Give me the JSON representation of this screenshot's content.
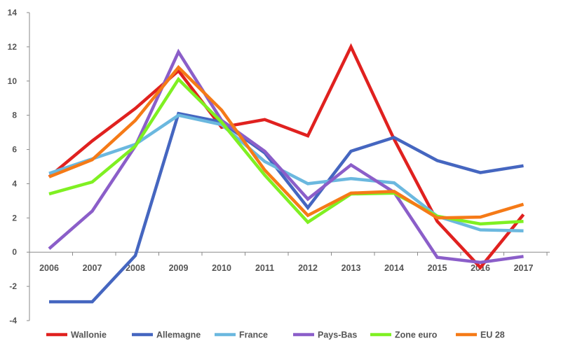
{
  "chart_data": {
    "type": "line",
    "title": "",
    "xlabel": "",
    "ylabel": "",
    "x": [
      "2006",
      "2007",
      "2008",
      "2009",
      "2010",
      "2011",
      "2012",
      "2013",
      "2014",
      "2015",
      "2016",
      "2017"
    ],
    "ylim": [
      -4,
      14
    ],
    "yticks": [
      -4,
      -2,
      0,
      2,
      4,
      6,
      8,
      10,
      12,
      14
    ],
    "grid": false,
    "legend_position": "bottom",
    "series": [
      {
        "name": "Wallonie",
        "color": "#e0211f",
        "values": [
          4.4,
          6.5,
          8.4,
          10.6,
          7.3,
          7.75,
          6.8,
          12.0,
          6.6,
          1.8,
          -0.9,
          2.2
        ]
      },
      {
        "name": "Allemagne",
        "color": "#4566c0",
        "values": [
          -2.9,
          -2.9,
          -0.2,
          8.1,
          7.6,
          5.8,
          2.6,
          5.9,
          6.7,
          5.35,
          4.65,
          5.05
        ]
      },
      {
        "name": "France",
        "color": "#6bb8df",
        "values": [
          4.6,
          5.45,
          6.3,
          8.0,
          7.45,
          5.3,
          4.0,
          4.3,
          4.05,
          2.1,
          1.3,
          1.25
        ]
      },
      {
        "name": "Pays-Bas",
        "color": "#8b5ec9",
        "values": [
          0.2,
          2.4,
          6.2,
          11.7,
          7.7,
          5.9,
          3.1,
          5.1,
          3.5,
          -0.3,
          -0.6,
          -0.25
        ]
      },
      {
        "name": "Zone euro",
        "color": "#7ff022",
        "values": [
          3.4,
          4.1,
          6.2,
          10.1,
          7.6,
          4.5,
          1.75,
          3.4,
          3.45,
          2.1,
          1.65,
          1.8
        ]
      },
      {
        "name": "EU 28",
        "color": "#f57a17",
        "values": [
          4.4,
          5.4,
          7.7,
          10.8,
          8.3,
          4.8,
          2.15,
          3.45,
          3.55,
          2.0,
          2.05,
          2.8
        ]
      }
    ]
  }
}
